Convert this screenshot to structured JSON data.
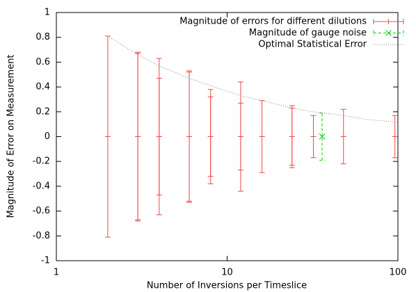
{
  "chart_data": {
    "type": "errorbar",
    "xlabel": "Number of Inversions per Timeslice",
    "ylabel": "Magnitude of Error on Measurement",
    "xlim": [
      1,
      100
    ],
    "xticks": [
      1,
      10,
      100
    ],
    "xscale": "log",
    "ylim": [
      -1,
      1
    ],
    "yticks": [
      -1,
      -0.8,
      -0.6,
      -0.4,
      -0.2,
      0,
      0.2,
      0.4,
      0.6,
      0.8,
      1
    ],
    "grid": false,
    "legend": "top-right",
    "series": [
      {
        "name": "Magnitude of errors for different dilutions",
        "color": "#f04848",
        "style": "errorbars",
        "x": [
          2,
          3,
          3,
          4,
          4,
          6,
          6,
          8,
          8,
          12,
          12,
          16,
          24,
          24,
          32,
          48,
          96
        ],
        "values": [
          0,
          0,
          0,
          0,
          0,
          0,
          0,
          0,
          0,
          0,
          0,
          0,
          0,
          0,
          0,
          0,
          0
        ],
        "errors": [
          0.81,
          0.68,
          0.67,
          0.63,
          0.47,
          0.53,
          0.52,
          0.38,
          0.32,
          0.44,
          0.27,
          0.29,
          0.25,
          0.23,
          0.17,
          0.22,
          0.17
        ]
      },
      {
        "name": "Magnitude of gauge noise",
        "color": "#00d000",
        "style": "dashed-errorbars",
        "x": [
          36
        ],
        "values": [
          0
        ],
        "errors": [
          0.19
        ]
      },
      {
        "name": "Optimal Statistical Error",
        "color": "#888888",
        "style": "dotted-line",
        "x": [
          2,
          3,
          4,
          6,
          8,
          12,
          16,
          24,
          32,
          48,
          64,
          100
        ],
        "values": [
          0.81,
          0.66,
          0.57,
          0.47,
          0.41,
          0.33,
          0.29,
          0.23,
          0.2,
          0.17,
          0.14,
          0.115
        ]
      }
    ]
  }
}
